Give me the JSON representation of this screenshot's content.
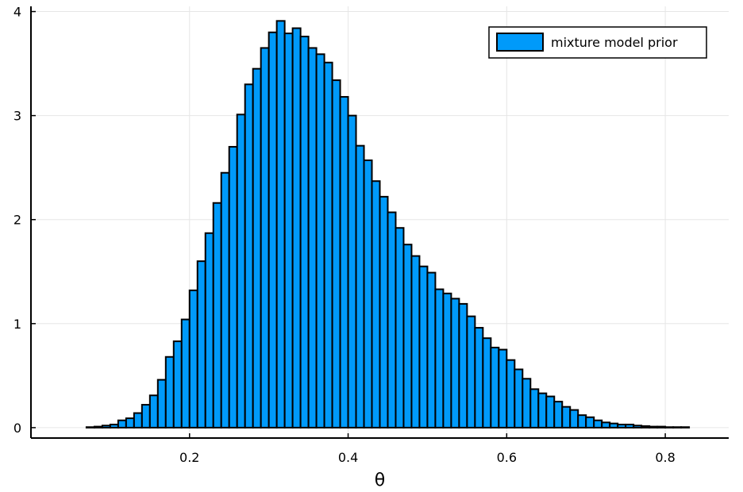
{
  "chart_data": {
    "type": "bar",
    "title": "",
    "xlabel": "θ",
    "ylabel": "",
    "xlim": [
      0.0,
      0.88
    ],
    "ylim": [
      -0.1,
      4.05
    ],
    "bin_width": 0.01,
    "x_ticks": [
      0.2,
      0.4,
      0.6,
      0.8
    ],
    "x_tick_labels": [
      "0.2",
      "0.4",
      "0.6",
      "0.8"
    ],
    "y_ticks": [
      0,
      1,
      2,
      3,
      4
    ],
    "y_tick_labels": [
      "0",
      "1",
      "2",
      "3",
      "4"
    ],
    "grid": true,
    "legend_position": "top-right",
    "series": [
      {
        "name": "mixture model prior",
        "color": "#009AFA",
        "bin_starts": [
          0.05,
          0.06,
          0.07,
          0.08,
          0.09,
          0.1,
          0.11,
          0.12,
          0.13,
          0.14,
          0.15,
          0.16,
          0.17,
          0.18,
          0.19,
          0.2,
          0.21,
          0.22,
          0.23,
          0.24,
          0.25,
          0.26,
          0.27,
          0.28,
          0.29,
          0.3,
          0.31,
          0.32,
          0.33,
          0.34,
          0.35,
          0.36,
          0.37,
          0.38,
          0.39,
          0.4,
          0.41,
          0.42,
          0.43,
          0.44,
          0.45,
          0.46,
          0.47,
          0.48,
          0.49,
          0.5,
          0.51,
          0.52,
          0.53,
          0.54,
          0.55,
          0.56,
          0.57,
          0.58,
          0.59,
          0.6,
          0.61,
          0.62,
          0.63,
          0.64,
          0.65,
          0.66,
          0.67,
          0.68,
          0.69,
          0.7,
          0.71,
          0.72,
          0.73,
          0.74,
          0.75,
          0.76,
          0.77,
          0.78,
          0.79,
          0.8,
          0.81,
          0.82
        ],
        "values": [
          0.0,
          0.0,
          0.005,
          0.01,
          0.02,
          0.03,
          0.07,
          0.09,
          0.14,
          0.22,
          0.31,
          0.46,
          0.68,
          0.83,
          1.04,
          1.32,
          1.6,
          1.87,
          2.16,
          2.45,
          2.7,
          3.01,
          3.3,
          3.45,
          3.65,
          3.8,
          3.91,
          3.79,
          3.84,
          3.76,
          3.65,
          3.59,
          3.51,
          3.34,
          3.18,
          3.0,
          2.71,
          2.57,
          2.37,
          2.22,
          2.07,
          1.92,
          1.76,
          1.65,
          1.55,
          1.49,
          1.33,
          1.29,
          1.24,
          1.19,
          1.07,
          0.96,
          0.86,
          0.77,
          0.75,
          0.65,
          0.56,
          0.47,
          0.37,
          0.33,
          0.3,
          0.25,
          0.2,
          0.17,
          0.12,
          0.1,
          0.07,
          0.05,
          0.04,
          0.03,
          0.03,
          0.02,
          0.015,
          0.01,
          0.01,
          0.005,
          0.005,
          0.005
        ]
      }
    ]
  }
}
